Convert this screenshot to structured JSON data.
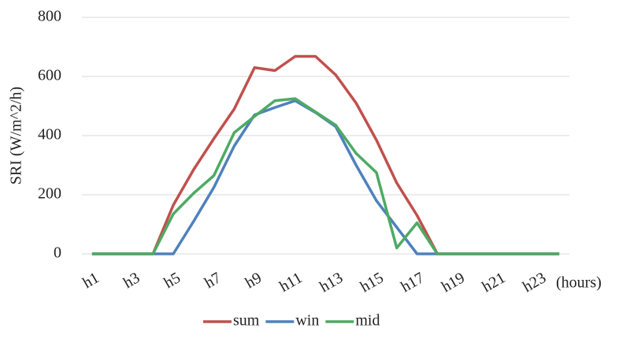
{
  "chart_data": {
    "type": "line",
    "y_label": "SRI (W/m^2/h)",
    "x_label": "(hours)",
    "categories": [
      "h1",
      null,
      "h3",
      null,
      "h5",
      null,
      "h7",
      null,
      "h9",
      null,
      "h11",
      null,
      "h13",
      null,
      "h15",
      null,
      "h17",
      null,
      "h19",
      null,
      "h21",
      null,
      "h23",
      null
    ],
    "series": [
      {
        "name": "sum",
        "color": "#c0504d",
        "values": [
          0,
          0,
          0,
          0,
          165,
          285,
          390,
          490,
          630,
          620,
          668,
          668,
          605,
          510,
          385,
          240,
          130,
          0,
          0,
          0,
          0,
          0,
          0,
          0
        ]
      },
      {
        "name": "win",
        "color": "#4f81bd",
        "values": [
          0,
          0,
          0,
          0,
          0,
          110,
          225,
          365,
          470,
          495,
          518,
          478,
          430,
          300,
          180,
          90,
          0,
          0,
          0,
          0,
          0,
          0,
          0,
          0
        ]
      },
      {
        "name": "mid",
        "color": "#4eaa63",
        "values": [
          0,
          0,
          0,
          0,
          135,
          205,
          265,
          410,
          465,
          518,
          525,
          480,
          435,
          340,
          275,
          20,
          105,
          0,
          0,
          0,
          0,
          0,
          0,
          0
        ]
      }
    ],
    "ylim": [
      0,
      800
    ],
    "yticks": [
      0,
      200,
      400,
      600,
      800
    ],
    "grid": true,
    "legend": "bottom"
  }
}
